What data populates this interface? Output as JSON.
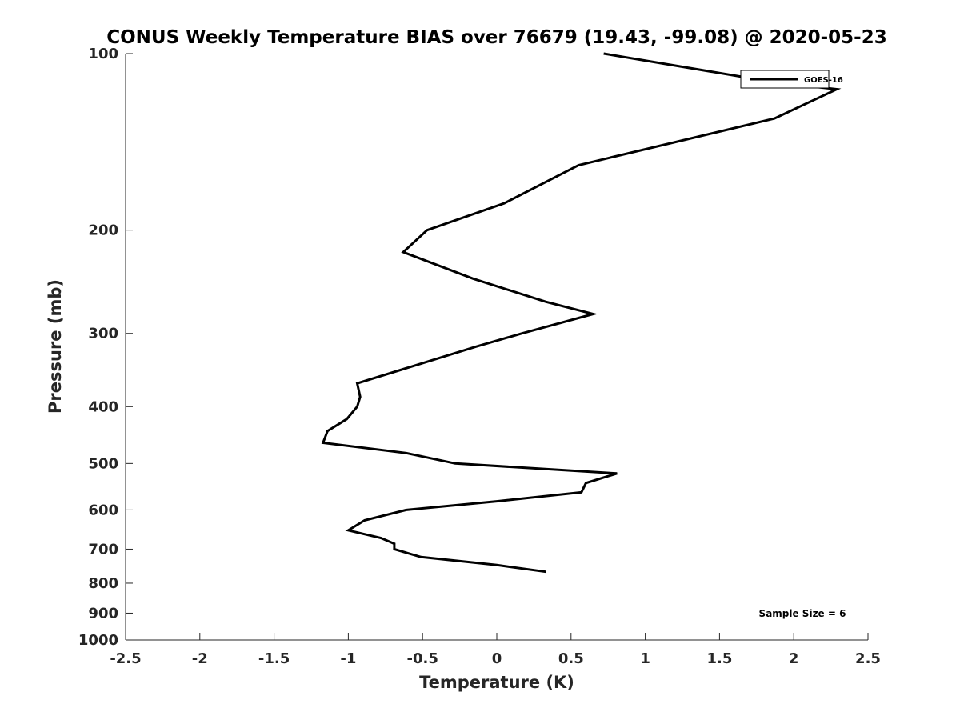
{
  "chart_data": {
    "type": "line",
    "title": "CONUS Weekly Temperature BIAS over 76679 (19.43, -99.08) @ 2020-05-23",
    "xlabel": "Temperature (K)",
    "ylabel": "Pressure (mb)",
    "xlim": [
      -2.5,
      2.5
    ],
    "ylim": [
      100,
      1000
    ],
    "y_scale": "log",
    "y_reversed": true,
    "x_ticks": [
      -2.5,
      -2,
      -1.5,
      -1,
      -0.5,
      0,
      0.5,
      1,
      1.5,
      2,
      2.5
    ],
    "x_tick_labels": [
      "-2.5",
      "-2",
      "-1.5",
      "-1",
      "-0.5",
      "0",
      "0.5",
      "1",
      "1.5",
      "2",
      "2.5"
    ],
    "y_ticks": [
      100,
      200,
      300,
      400,
      500,
      600,
      700,
      800,
      900,
      1000
    ],
    "y_tick_labels": [
      "100",
      "200",
      "300",
      "400",
      "500",
      "600",
      "700",
      "800",
      "900",
      "1000"
    ],
    "grid": false,
    "legend_position": "top-right",
    "series": [
      {
        "name": "GOES-16",
        "color": "#000000",
        "points": [
          [
            0.72,
            100
          ],
          [
            1.88,
            112
          ],
          [
            2.29,
            115
          ],
          [
            1.87,
            129
          ],
          [
            0.55,
            155
          ],
          [
            0.05,
            180
          ],
          [
            -0.47,
            200
          ],
          [
            -0.63,
            218
          ],
          [
            -0.16,
            242
          ],
          [
            0.33,
            265
          ],
          [
            0.65,
            278
          ],
          [
            0.17,
            300
          ],
          [
            -0.14,
            316
          ],
          [
            -0.94,
            365
          ],
          [
            -0.92,
            385
          ],
          [
            -0.94,
            400
          ],
          [
            -1.01,
            420
          ],
          [
            -1.14,
            440
          ],
          [
            -1.17,
            461
          ],
          [
            -0.61,
            480
          ],
          [
            -0.28,
            500
          ],
          [
            0.81,
            520
          ],
          [
            0.6,
            540
          ],
          [
            0.57,
            560
          ],
          [
            0.0,
            580
          ],
          [
            -0.61,
            600
          ],
          [
            -0.89,
            625
          ],
          [
            -1.0,
            650
          ],
          [
            -0.78,
            670
          ],
          [
            -0.69,
            685
          ],
          [
            -0.69,
            700
          ],
          [
            -0.51,
            722
          ],
          [
            0.0,
            745
          ],
          [
            0.33,
            765
          ]
        ]
      }
    ],
    "annotations": [
      {
        "text": "Sample Size = 6"
      }
    ]
  }
}
